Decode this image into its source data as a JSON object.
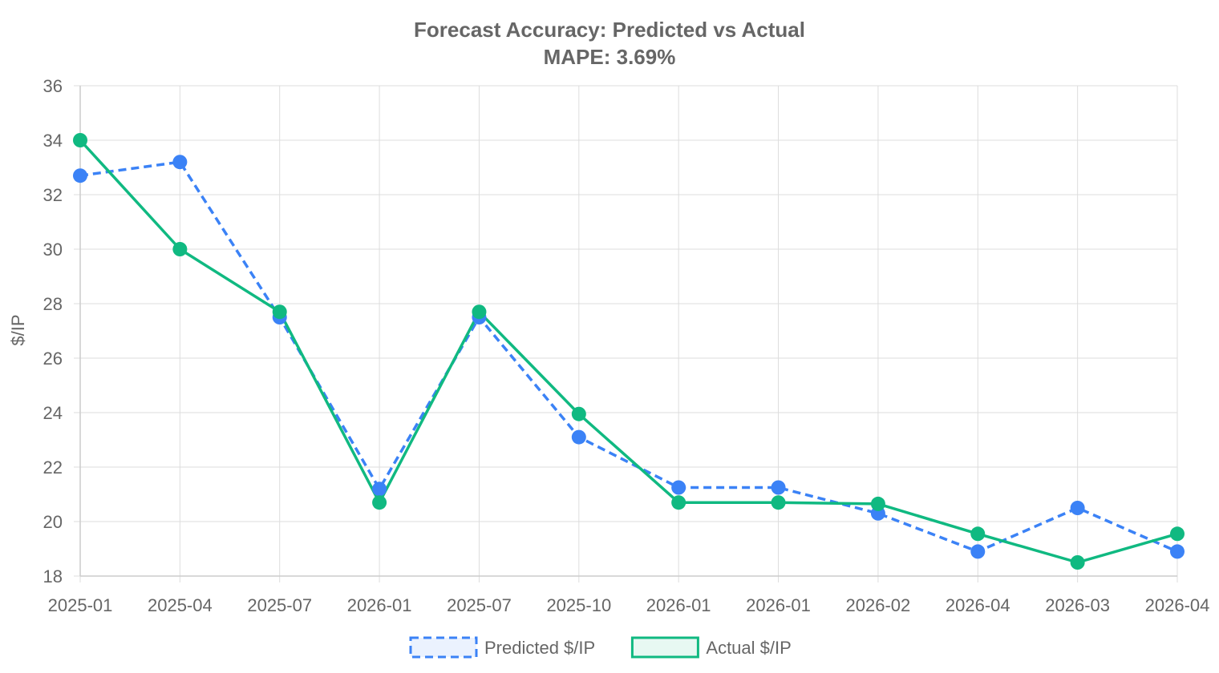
{
  "chart_data": {
    "type": "line",
    "title": "Forecast Accuracy: Predicted vs Actual",
    "subtitle": "MAPE: 3.69%",
    "xlabel": "",
    "ylabel": "$/IP",
    "ylim": [
      18,
      36
    ],
    "yticks": [
      18,
      20,
      22,
      24,
      26,
      28,
      30,
      32,
      34,
      36
    ],
    "grid": true,
    "legend_position": "bottom",
    "categories": [
      "2025-01",
      "2025-04",
      "2025-07",
      "2026-01",
      "2025-07",
      "2025-10",
      "2026-01",
      "2026-01",
      "2026-02",
      "2026-04",
      "2026-03",
      "2026-04"
    ],
    "series": [
      {
        "name": "Predicted $/IP",
        "color": "#3b82f6",
        "dashed": true,
        "values": [
          32.7,
          33.2,
          27.5,
          21.2,
          27.5,
          23.1,
          21.25,
          21.25,
          20.3,
          18.9,
          20.5,
          18.9
        ]
      },
      {
        "name": "Actual $/IP",
        "color": "#10b981",
        "dashed": false,
        "values": [
          34.0,
          30.0,
          27.7,
          20.7,
          27.7,
          23.95,
          20.7,
          20.7,
          20.65,
          19.55,
          18.5,
          19.55
        ]
      }
    ]
  }
}
